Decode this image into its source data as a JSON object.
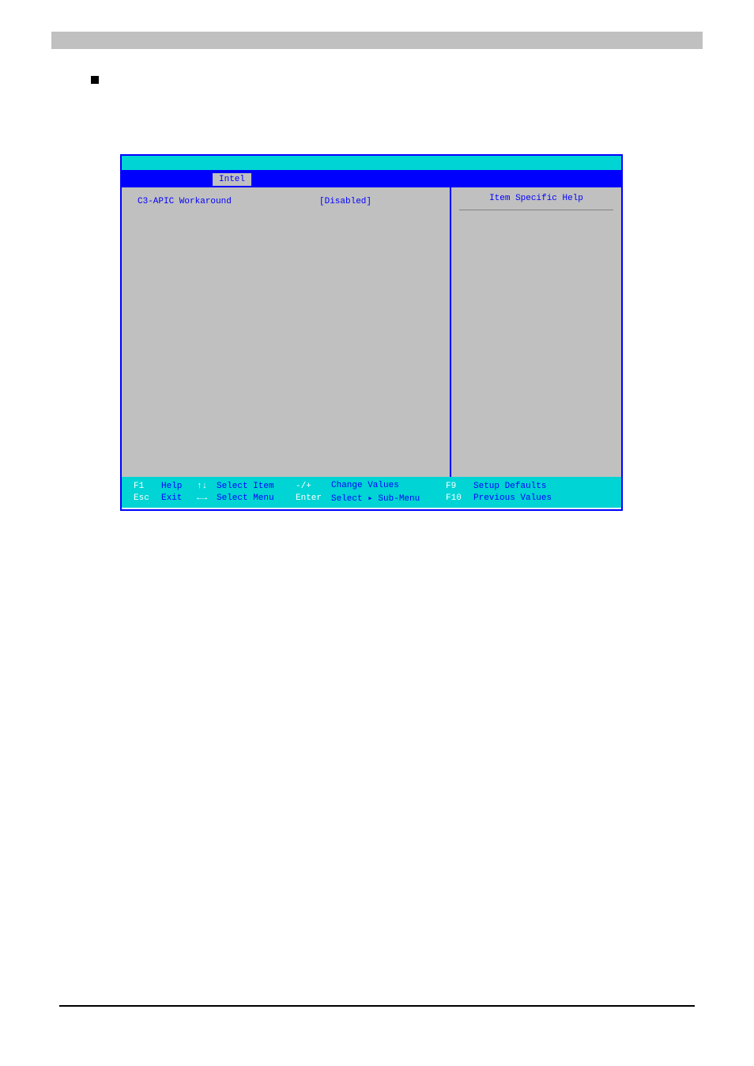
{
  "colors": {
    "bios_cyan": "#00d4d4",
    "bios_blue": "#0000ff",
    "bios_gray": "#c0c0c0",
    "bios_white": "#ffffff",
    "top_bar_gray": "#c0c0c0",
    "black": "#000000"
  },
  "menu": {
    "active_tab": "Intel"
  },
  "settings": {
    "row1_label": "C3-APIC Workaround",
    "row1_value": "[Disabled]"
  },
  "help": {
    "title": "Item Specific Help"
  },
  "footer": {
    "f1": "F1",
    "esc": "Esc",
    "help": "Help",
    "exit": "Exit",
    "updown": "↑↓",
    "leftright": "←→",
    "select_item": "Select Item",
    "select_menu": "Select Menu",
    "minus_plus": "-/+",
    "enter": "Enter",
    "change_values": "Change Values",
    "select_submenu": "Select ▸ Sub-Menu",
    "f9": "F9",
    "f10": "F10",
    "setup_defaults": "Setup Defaults",
    "previous_values": "Previous Values"
  }
}
